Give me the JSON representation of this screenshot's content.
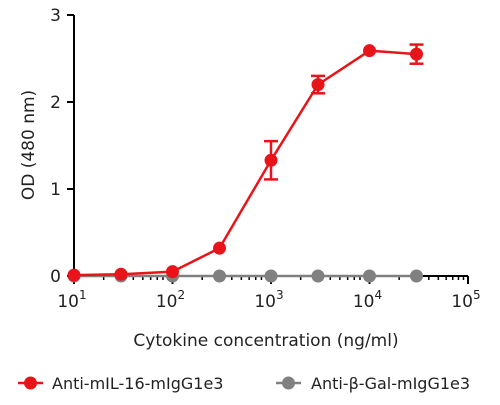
{
  "chart_data": {
    "type": "scatter",
    "title": "",
    "xlabel": "Cytokine concentration (ng/ml)",
    "ylabel": "OD (480 nm)",
    "xscale": "log",
    "xlim": [
      10,
      100000
    ],
    "ylim": [
      0,
      3
    ],
    "x_ticks": [
      10,
      100,
      1000,
      10000,
      100000
    ],
    "x_tick_labels": [
      {
        "base": "10",
        "exp": "1"
      },
      {
        "base": "10",
        "exp": "2"
      },
      {
        "base": "10",
        "exp": "3"
      },
      {
        "base": "10",
        "exp": "4"
      },
      {
        "base": "10",
        "exp": "5"
      }
    ],
    "y_ticks": [
      0,
      1,
      2,
      3
    ],
    "y_tick_labels": [
      "0",
      "1",
      "2",
      "3"
    ],
    "grid": false,
    "legend_position": "bottom",
    "series": [
      {
        "name": "Anti-mIL-16-mIgG1e3",
        "color": "#e8141a",
        "x": [
          10,
          30,
          100,
          300,
          1000,
          3000,
          10000,
          30000
        ],
        "y": [
          0.01,
          0.02,
          0.05,
          0.32,
          1.33,
          2.2,
          2.59,
          2.55
        ],
        "err": [
          0,
          0,
          0,
          0,
          0.22,
          0.1,
          0,
          0.11
        ]
      },
      {
        "name": "Anti-β-Gal-mIgG1e3",
        "color": "#808080",
        "x": [
          10,
          30,
          100,
          300,
          1000,
          3000,
          10000,
          30000
        ],
        "y": [
          0.0,
          0.0,
          0.0,
          0.0,
          0.0,
          0.0,
          0.0,
          0.0
        ],
        "err": [
          0,
          0,
          0,
          0,
          0,
          0,
          0,
          0
        ]
      }
    ]
  }
}
